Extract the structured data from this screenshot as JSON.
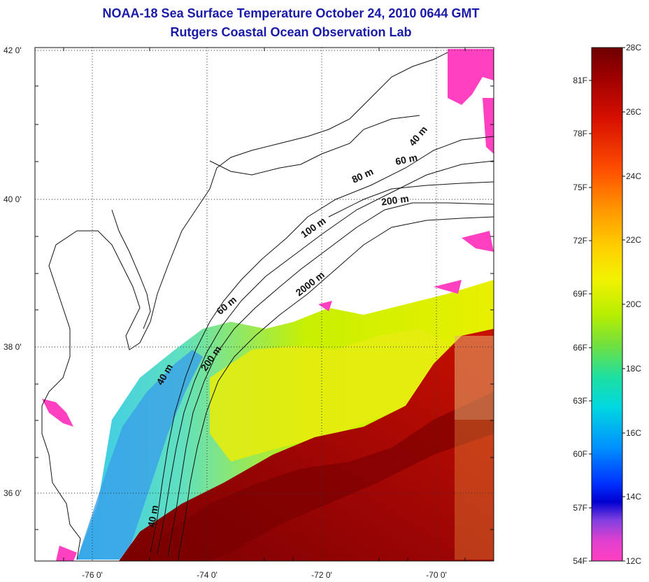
{
  "title": {
    "line1": "NOAA-18 Sea Surface Temperature October 24, 2010 0644 GMT",
    "line2": "Rutgers Coastal Ocean Observation Lab"
  },
  "map": {
    "lat_labels": [
      "42 0'",
      "40 0'",
      "38 0'",
      "36 0'"
    ],
    "lon_labels": [
      "-76 0'",
      "-74 0'",
      "-72 0'",
      "-70 0'"
    ],
    "contour_labels": [
      "40 m",
      "60 m",
      "80 m",
      "200 m",
      "100 m",
      "2000 m",
      "60 m",
      "200 m",
      "40 m",
      "40 m"
    ]
  },
  "colorbar": {
    "celsius_labels": [
      "28C",
      "26C",
      "24C",
      "22C",
      "20C",
      "18C",
      "16C",
      "14C",
      "12C"
    ],
    "fahrenheit_labels": [
      "81F",
      "78F",
      "75F",
      "72F",
      "69F",
      "66F",
      "63F",
      "60F",
      "57F",
      "54F"
    ],
    "colors": [
      "#6e0000",
      "#a00000",
      "#d81000",
      "#ff5000",
      "#ff9a00",
      "#ffd000",
      "#f2f200",
      "#b8ee00",
      "#70e040",
      "#20e0a0",
      "#00d8e0",
      "#0090ff",
      "#0030ff",
      "#0000d0",
      "#8040e0",
      "#e040d0",
      "#ff40c0"
    ]
  }
}
